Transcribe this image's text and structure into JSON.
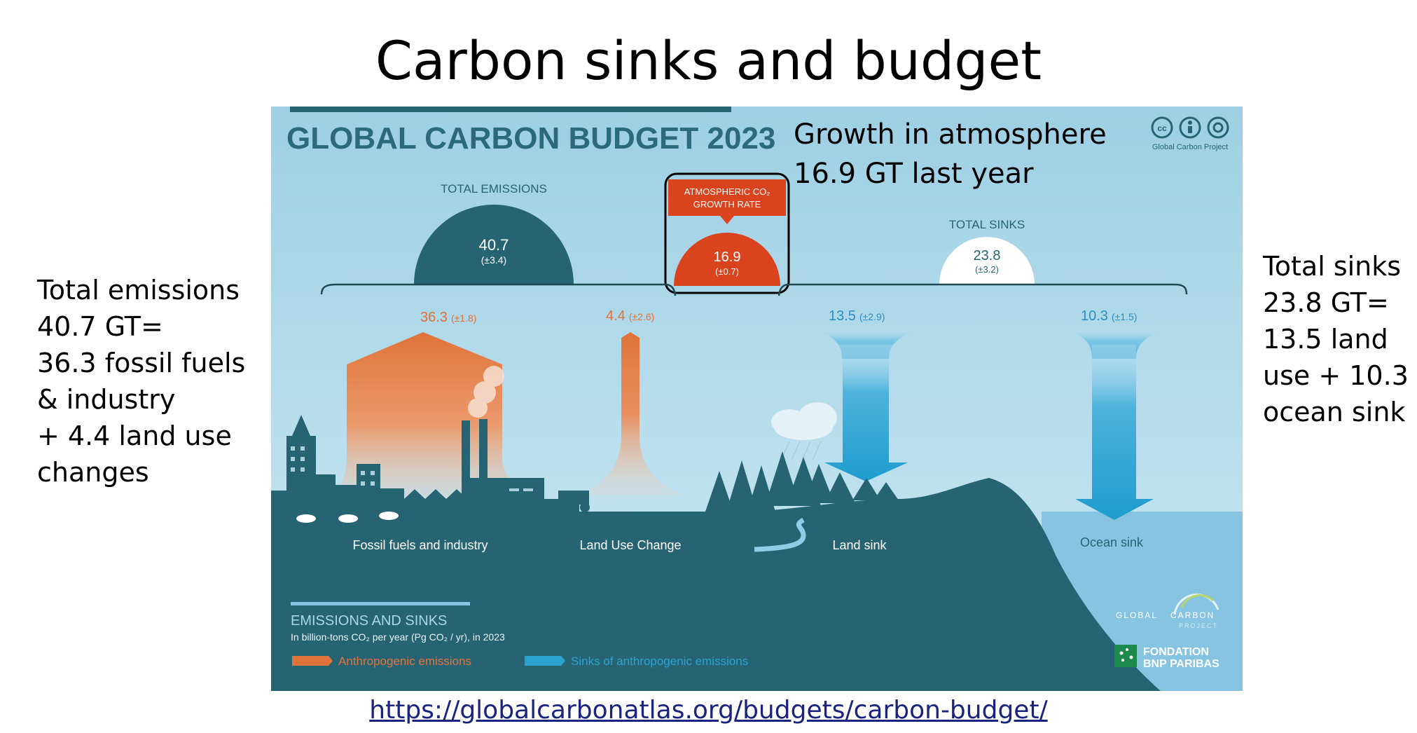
{
  "slide": {
    "title": "Carbon sinks and budget",
    "left_note": "Total emissions\n40.7 GT=\n36.3 fossil fuels\n& industry\n+ 4.4 land use\nchanges",
    "right_note": "Total sinks\n23.8 GT=\n13.5 land\nuse + 10.3\nocean sink",
    "growth_note": "Growth in atmosphere\n16.9 GT last year",
    "url": "https://globalcarbonatlas.org/budgets/carbon-budget/"
  },
  "infographic": {
    "heading": "GLOBAL CARBON BUDGET 2023",
    "credit": "Global Carbon Project",
    "total_emissions": {
      "label": "TOTAL EMISSIONS",
      "value": "40.7",
      "uncertainty": "(±3.4)"
    },
    "growth_rate": {
      "label_line1": "ATMOSPHERIC CO₂",
      "label_line2": "GROWTH RATE",
      "value": "16.9",
      "uncertainty": "(±0.7)"
    },
    "total_sinks": {
      "label": "TOTAL SINKS",
      "value": "23.8",
      "uncertainty": "(±3.2)"
    },
    "flows": [
      {
        "name": "Fossil fuels and industry",
        "value": "36.3",
        "uncertainty": "(±1.8)",
        "kind": "emission"
      },
      {
        "name": "Land Use Change",
        "value": "4.4",
        "uncertainty": "(±2.6)",
        "kind": "emission"
      },
      {
        "name": "Land sink",
        "value": "13.5",
        "uncertainty": "(±2.9)",
        "kind": "sink"
      },
      {
        "name": "Ocean sink",
        "value": "10.3",
        "uncertainty": "(±1.5)",
        "kind": "sink"
      }
    ],
    "legend": {
      "title": "EMISSIONS AND SINKS",
      "subtitle": "In billion-tons CO₂ per year (Pg CO₂ / yr), in 2023",
      "emissions": "Anthropogenic emissions",
      "sinks": "Sinks of anthropogenic emissions"
    },
    "logos": {
      "gcp_line1": "GLOBAL",
      "gcp_line2": "CARBON",
      "gcp_line3": "PROJECT",
      "bnp_line1": "FONDATION",
      "bnp_line2": "BNP PARIBAS",
      "cc_icons": [
        "cc-icon",
        "attribution-icon",
        "no-derivatives-icon"
      ]
    },
    "colors": {
      "sky": "#bfe1f0",
      "ground": "#276473",
      "emission": "#e0733a",
      "sink": "#2aa3d0",
      "growth": "#d9441f",
      "heading": "#2a6a7c",
      "ocean": "#86c4e2"
    }
  }
}
